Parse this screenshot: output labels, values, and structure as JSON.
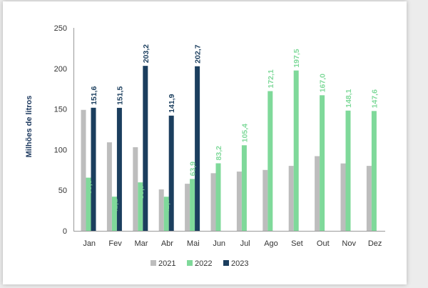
{
  "chart_data": {
    "type": "bar",
    "ylabel": "Milhões de litros",
    "ylim": [
      0,
      250
    ],
    "yticks": [
      0,
      50,
      100,
      150,
      200,
      250
    ],
    "categories": [
      "Jan",
      "Fev",
      "Mar",
      "Abr",
      "Mai",
      "Jun",
      "Jul",
      "Ago",
      "Set",
      "Out",
      "Nov",
      "Dez"
    ],
    "series": [
      {
        "name": "2021",
        "color": "#bdbdbd",
        "values": [
          149,
          109,
          103,
          51,
          58,
          71,
          73,
          75,
          80,
          92,
          83,
          80
        ],
        "labels": [
          null,
          null,
          null,
          null,
          null,
          null,
          null,
          null,
          null,
          null,
          null,
          null
        ]
      },
      {
        "name": "2022",
        "color": "#7fd99a",
        "values": [
          65.5,
          42.1,
          59.7,
          42.0,
          63.9,
          83.2,
          105.4,
          172.1,
          197.5,
          167.0,
          148.1,
          147.6
        ],
        "labels": [
          "65,5",
          "42,1",
          "59,7",
          "42,0",
          "63,9",
          "83,2",
          "105,4",
          "172,1",
          "197,5",
          "167,0",
          "148,1",
          "147,6"
        ]
      },
      {
        "name": "2023",
        "color": "#1b3e5e",
        "values": [
          151.6,
          151.5,
          203.2,
          141.9,
          202.7,
          null,
          null,
          null,
          null,
          null,
          null,
          null
        ],
        "labels": [
          "151,6",
          "151,5",
          "203,2",
          "141,9",
          "202,7",
          null,
          null,
          null,
          null,
          null,
          null,
          null
        ]
      }
    ],
    "grid": false,
    "legend": "bottom"
  }
}
